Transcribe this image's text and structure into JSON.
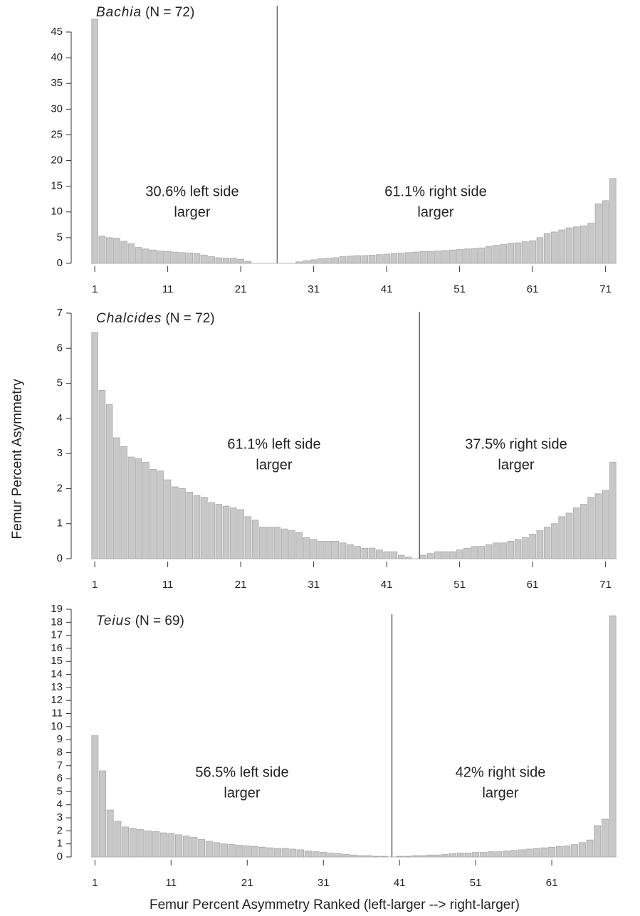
{
  "chart_data": [
    {
      "type": "bar",
      "species": "Bachia",
      "n_label": "(N = 72)",
      "annotations": [
        [
          "30.6% left side",
          "larger"
        ],
        [
          "61.1% right side",
          "larger"
        ]
      ],
      "divider": 26,
      "color": "#c8c8c8",
      "x": [
        1,
        2,
        3,
        4,
        5,
        6,
        7,
        8,
        9,
        10,
        11,
        12,
        13,
        14,
        15,
        16,
        17,
        18,
        19,
        20,
        21,
        22,
        23,
        24,
        25,
        26,
        27,
        28,
        29,
        30,
        31,
        32,
        33,
        34,
        35,
        36,
        37,
        38,
        39,
        40,
        41,
        42,
        43,
        44,
        45,
        46,
        47,
        48,
        49,
        50,
        51,
        52,
        53,
        54,
        55,
        56,
        57,
        58,
        59,
        60,
        61,
        62,
        63,
        64,
        65,
        66,
        67,
        68,
        69,
        70,
        71,
        72
      ],
      "values": [
        47.5,
        5.3,
        5.0,
        4.9,
        4.3,
        3.8,
        3.1,
        2.8,
        2.6,
        2.4,
        2.3,
        2.2,
        2.1,
        2.0,
        1.9,
        1.6,
        1.3,
        1.1,
        1.0,
        1.0,
        0.8,
        0.4,
        0,
        0,
        0,
        0,
        0,
        0,
        0.3,
        0.5,
        0.7,
        0.9,
        1.0,
        1.1,
        1.3,
        1.4,
        1.5,
        1.5,
        1.6,
        1.7,
        1.8,
        1.9,
        2.0,
        2.1,
        2.2,
        2.3,
        2.3,
        2.4,
        2.5,
        2.6,
        2.7,
        2.8,
        2.9,
        3.0,
        3.3,
        3.5,
        3.7,
        3.9,
        4.0,
        4.2,
        4.4,
        5.0,
        5.8,
        6.1,
        6.5,
        6.9,
        7.1,
        7.3,
        7.8,
        11.6,
        12.2,
        16.5
      ],
      "xlim": [
        0.5,
        72.5
      ],
      "xticks": [
        1,
        11,
        21,
        31,
        41,
        51,
        61,
        71
      ],
      "ylim": [
        0,
        47.5
      ],
      "yticks": [
        0,
        5,
        10,
        15,
        20,
        25,
        30,
        35,
        40,
        45
      ]
    },
    {
      "type": "bar",
      "species": "Chalcides",
      "n_label": "(N = 72)",
      "annotations": [
        [
          "61.1% left side",
          "larger"
        ],
        [
          "37.5% right side",
          "larger"
        ]
      ],
      "divider": 45.5,
      "color": "#c8c8c8",
      "ylabel": "Femur Percent Asymmetry",
      "x": [
        1,
        2,
        3,
        4,
        5,
        6,
        7,
        8,
        9,
        10,
        11,
        12,
        13,
        14,
        15,
        16,
        17,
        18,
        19,
        20,
        21,
        22,
        23,
        24,
        25,
        26,
        27,
        28,
        29,
        30,
        31,
        32,
        33,
        34,
        35,
        36,
        37,
        38,
        39,
        40,
        41,
        42,
        43,
        44,
        45,
        46,
        47,
        48,
        49,
        50,
        51,
        52,
        53,
        54,
        55,
        56,
        57,
        58,
        59,
        60,
        61,
        62,
        63,
        64,
        65,
        66,
        67,
        68,
        69,
        70,
        71,
        72
      ],
      "values": [
        6.45,
        4.8,
        4.4,
        3.45,
        3.2,
        2.9,
        2.85,
        2.75,
        2.55,
        2.5,
        2.25,
        2.05,
        2.0,
        1.9,
        1.8,
        1.75,
        1.6,
        1.55,
        1.5,
        1.45,
        1.4,
        1.2,
        1.1,
        0.9,
        0.9,
        0.9,
        0.85,
        0.8,
        0.75,
        0.6,
        0.55,
        0.5,
        0.5,
        0.5,
        0.45,
        0.4,
        0.35,
        0.3,
        0.3,
        0.25,
        0.2,
        0.2,
        0.1,
        0.05,
        0,
        0.1,
        0.15,
        0.2,
        0.2,
        0.2,
        0.25,
        0.3,
        0.35,
        0.35,
        0.4,
        0.45,
        0.45,
        0.5,
        0.55,
        0.6,
        0.7,
        0.8,
        0.9,
        1.0,
        1.2,
        1.3,
        1.45,
        1.55,
        1.75,
        1.85,
        1.95,
        2.75
      ],
      "xlim": [
        0.5,
        72.5
      ],
      "xticks": [
        1,
        11,
        21,
        31,
        41,
        51,
        61,
        71
      ],
      "ylim": [
        0,
        7
      ],
      "yticks": [
        0,
        1,
        2,
        3,
        4,
        5,
        6,
        7
      ]
    },
    {
      "type": "bar",
      "species": "Teius",
      "n_label": "(N = 69)",
      "annotations": [
        [
          "56.5% left side",
          "larger"
        ],
        [
          "42% right side",
          "larger"
        ]
      ],
      "divider": 40,
      "color": "#c8c8c8",
      "xlabel": "Femur Percent Asymmetry Ranked (left-larger --> right-larger)",
      "x": [
        1,
        2,
        3,
        4,
        5,
        6,
        7,
        8,
        9,
        10,
        11,
        12,
        13,
        14,
        15,
        16,
        17,
        18,
        19,
        20,
        21,
        22,
        23,
        24,
        25,
        26,
        27,
        28,
        29,
        30,
        31,
        32,
        33,
        34,
        35,
        36,
        37,
        38,
        39,
        40,
        41,
        42,
        43,
        44,
        45,
        46,
        47,
        48,
        49,
        50,
        51,
        52,
        53,
        54,
        55,
        56,
        57,
        58,
        59,
        60,
        61,
        62,
        63,
        64,
        65,
        66,
        67,
        68,
        69
      ],
      "values": [
        9.3,
        6.6,
        3.6,
        2.75,
        2.3,
        2.2,
        2.1,
        2.0,
        1.95,
        1.85,
        1.8,
        1.7,
        1.6,
        1.5,
        1.35,
        1.2,
        1.1,
        1.0,
        0.95,
        0.9,
        0.85,
        0.8,
        0.75,
        0.7,
        0.65,
        0.65,
        0.6,
        0.55,
        0.45,
        0.4,
        0.35,
        0.3,
        0.25,
        0.2,
        0.15,
        0.1,
        0.1,
        0.05,
        0.05,
        0,
        0.05,
        0.05,
        0.1,
        0.1,
        0.15,
        0.15,
        0.2,
        0.25,
        0.3,
        0.3,
        0.35,
        0.35,
        0.4,
        0.4,
        0.45,
        0.5,
        0.55,
        0.6,
        0.65,
        0.7,
        0.75,
        0.8,
        0.85,
        0.95,
        1.1,
        1.3,
        2.4,
        2.9,
        18.5
      ],
      "xlim": [
        0.5,
        69.5
      ],
      "xticks": [
        1,
        11,
        21,
        31,
        41,
        51,
        61
      ],
      "ylim": [
        0,
        19
      ],
      "yticks": [
        0,
        1,
        2,
        3,
        4,
        5,
        6,
        7,
        8,
        9,
        10,
        11,
        12,
        13,
        14,
        15,
        16,
        17,
        18,
        19
      ]
    }
  ]
}
